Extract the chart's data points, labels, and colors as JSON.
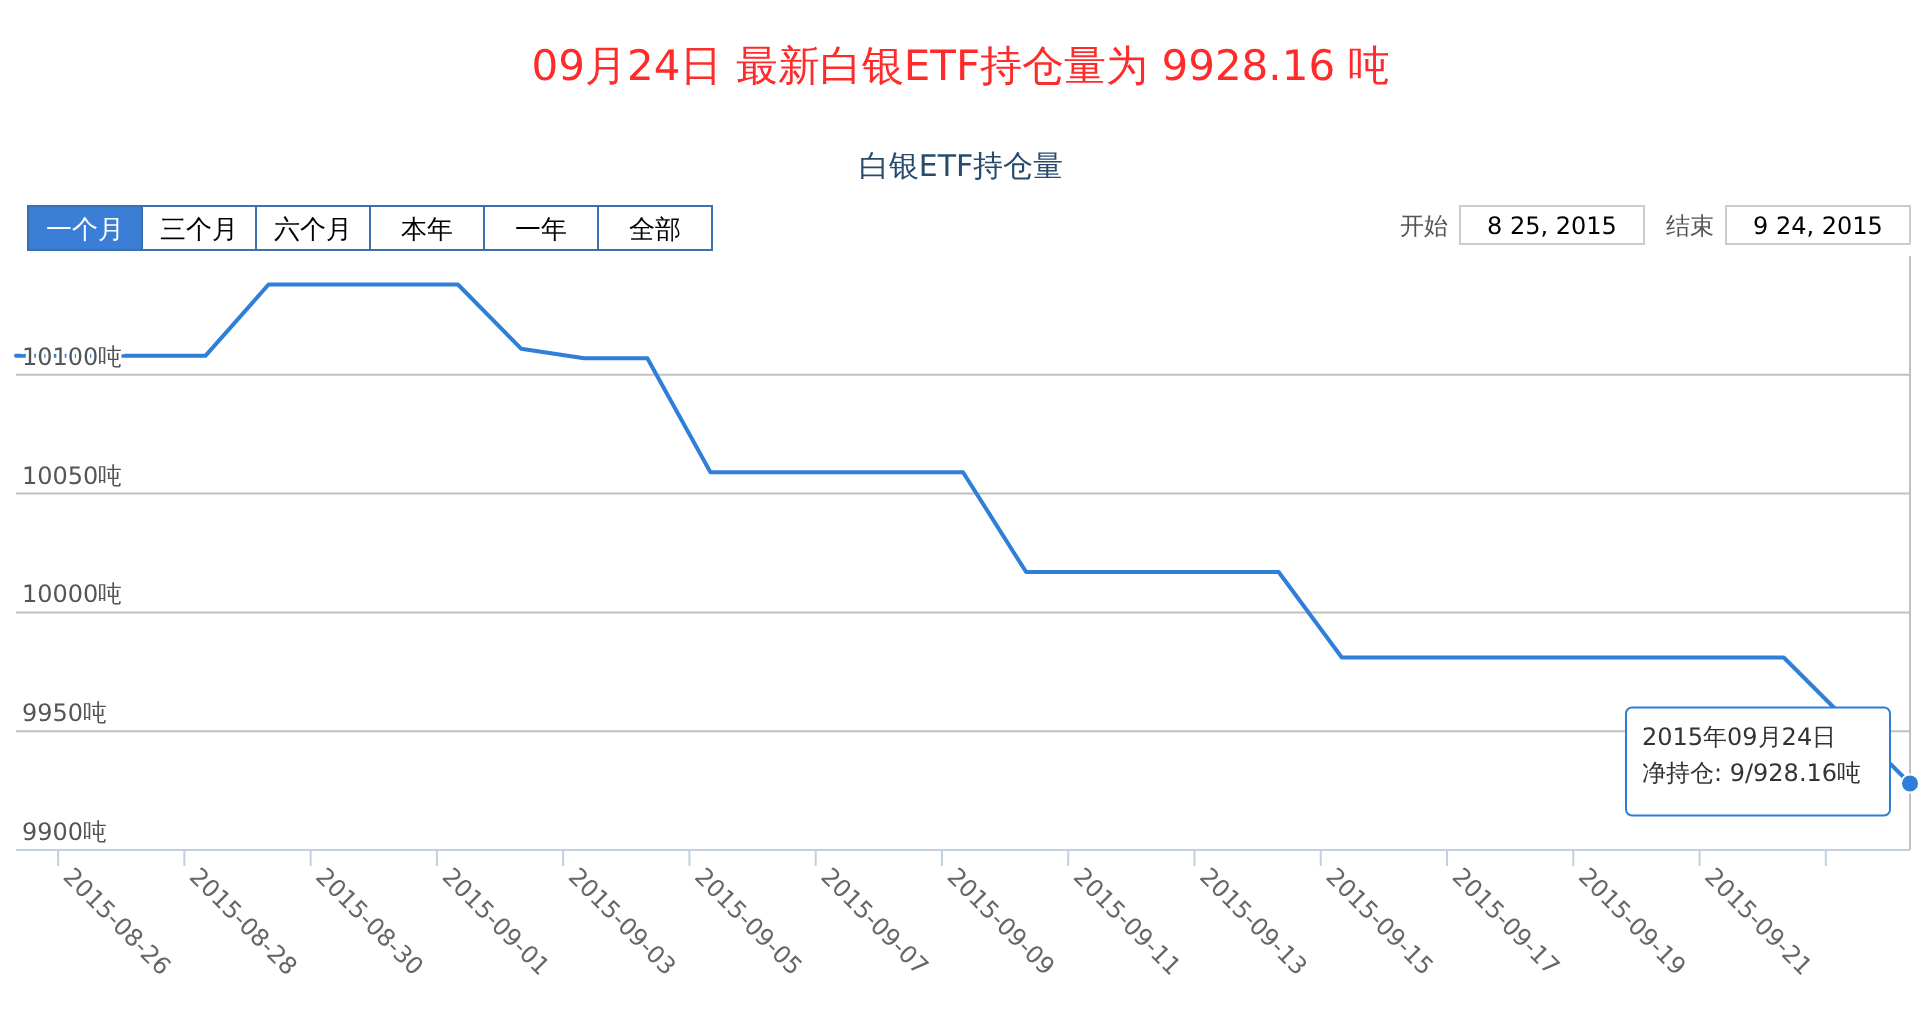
{
  "chart_data": {
    "type": "line",
    "title": "09月24日  最新白银ETF持仓量为 9928.16 吨",
    "subtitle": "白银ETF持仓量",
    "x": [
      "2015-08-25T08:00",
      "2015-08-28T08:00",
      "2015-08-29T08:00",
      "2015-09-01T08:00",
      "2015-09-02T08:00",
      "2015-09-03T08:00",
      "2015-09-04T08:00",
      "2015-09-05T08:00",
      "2015-09-09T08:00",
      "2015-09-10T08:00",
      "2015-09-14T08:00",
      "2015-09-15T08:00",
      "2015-09-22T08:00",
      "2015-09-24T08:00"
    ],
    "series": [
      {
        "color": "#2f7ed8",
        "values": [
          10108,
          10108,
          10138,
          10138,
          10111,
          10107,
          10107,
          10059,
          10059,
          10017,
          10017,
          9981,
          9981,
          9928
        ]
      }
    ],
    "xlim": [
      "2015-08-25T08:00",
      "2015-09-24T08:00"
    ],
    "xticks": [
      "2015-08-26",
      "2015-08-28",
      "2015-08-30",
      "2015-09-01",
      "2015-09-03",
      "2015-09-05",
      "2015-09-07",
      "2015-09-09",
      "2015-09-11",
      "2015-09-13",
      "2015-09-15",
      "2015-09-17",
      "2015-09-19",
      "2015-09-21",
      {
        "value": "2015-09-23",
        "label": null
      }
    ],
    "ylim": [
      9900,
      10150
    ],
    "yticks": [
      {
        "value": 9900,
        "label": "9900吨"
      },
      {
        "value": 9950,
        "label": "9950吨"
      },
      {
        "value": 10000,
        "label": "10000吨"
      },
      {
        "value": 10050,
        "label": "10050吨"
      },
      {
        "value": 10100,
        "label": "10100吨"
      }
    ],
    "grid": "y",
    "marker": "none",
    "line_style": "solid",
    "annotations": [
      "一个月",
      "三个月",
      "六个月",
      "本年",
      "一年",
      "全部",
      "开始",
      "8 25, 2015",
      "结束",
      "9 24, 2015",
      "2015年09月24日",
      "净持仓: 9/928.16吨"
    ]
  }
}
